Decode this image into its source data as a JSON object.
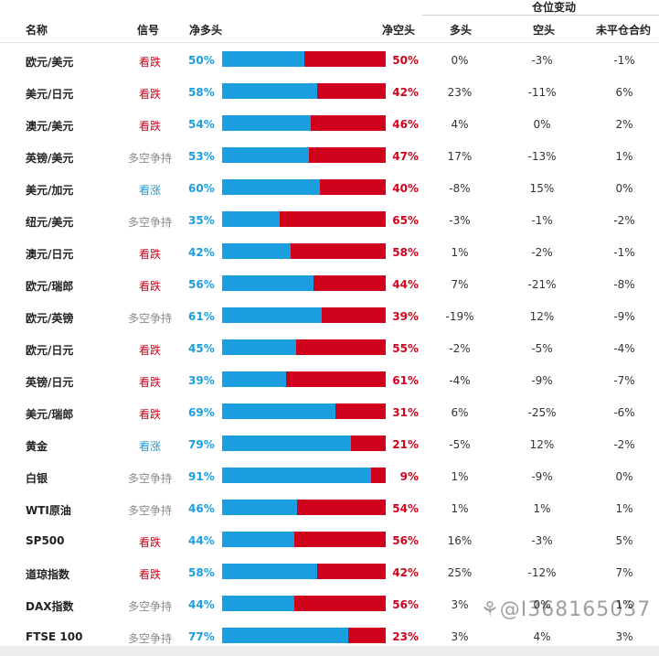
{
  "group_header": "仓位变动",
  "headers": {
    "name": "名称",
    "signal": "信号",
    "net_long": "净多头",
    "net_short": "净空头",
    "long": "多头",
    "short": "空头",
    "open_interest": "未平仓合约"
  },
  "colors": {
    "long_blue": "#1a9ee0",
    "short_red": "#d0021b",
    "neutral_gray": "#8a8a8a"
  },
  "rows": [
    {
      "name": "欧元/美元",
      "signal": "看跌",
      "signal_type": "down",
      "net_long": "50%",
      "net_long_value": 50,
      "net_short": "50%",
      "long": "0%",
      "short": "-3%",
      "oi": "-1%"
    },
    {
      "name": "美元/日元",
      "signal": "看跌",
      "signal_type": "down",
      "net_long": "58%",
      "net_long_value": 58,
      "net_short": "42%",
      "long": "23%",
      "short": "-11%",
      "oi": "6%"
    },
    {
      "name": "澳元/美元",
      "signal": "看跌",
      "signal_type": "down",
      "net_long": "54%",
      "net_long_value": 54,
      "net_short": "46%",
      "long": "4%",
      "short": "0%",
      "oi": "2%"
    },
    {
      "name": "英镑/美元",
      "signal": "多空争持",
      "signal_type": "neutral",
      "net_long": "53%",
      "net_long_value": 53,
      "net_short": "47%",
      "long": "17%",
      "short": "-13%",
      "oi": "1%"
    },
    {
      "name": "美元/加元",
      "signal": "看涨",
      "signal_type": "up",
      "net_long": "60%",
      "net_long_value": 60,
      "net_short": "40%",
      "long": "-8%",
      "short": "15%",
      "oi": "0%"
    },
    {
      "name": "纽元/美元",
      "signal": "多空争持",
      "signal_type": "neutral",
      "net_long": "35%",
      "net_long_value": 35,
      "net_short": "65%",
      "long": "-3%",
      "short": "-1%",
      "oi": "-2%"
    },
    {
      "name": "澳元/日元",
      "signal": "看跌",
      "signal_type": "down",
      "net_long": "42%",
      "net_long_value": 42,
      "net_short": "58%",
      "long": "1%",
      "short": "-2%",
      "oi": "-1%"
    },
    {
      "name": "欧元/瑞郎",
      "signal": "看跌",
      "signal_type": "down",
      "net_long": "56%",
      "net_long_value": 56,
      "net_short": "44%",
      "long": "7%",
      "short": "-21%",
      "oi": "-8%"
    },
    {
      "name": "欧元/英镑",
      "signal": "多空争持",
      "signal_type": "neutral",
      "net_long": "61%",
      "net_long_value": 61,
      "net_short": "39%",
      "long": "-19%",
      "short": "12%",
      "oi": "-9%"
    },
    {
      "name": "欧元/日元",
      "signal": "看跌",
      "signal_type": "down",
      "net_long": "45%",
      "net_long_value": 45,
      "net_short": "55%",
      "long": "-2%",
      "short": "-5%",
      "oi": "-4%"
    },
    {
      "name": "英镑/日元",
      "signal": "看跌",
      "signal_type": "down",
      "net_long": "39%",
      "net_long_value": 39,
      "net_short": "61%",
      "long": "-4%",
      "short": "-9%",
      "oi": "-7%"
    },
    {
      "name": "美元/瑞郎",
      "signal": "看跌",
      "signal_type": "down",
      "net_long": "69%",
      "net_long_value": 69,
      "net_short": "31%",
      "long": "6%",
      "short": "-25%",
      "oi": "-6%"
    },
    {
      "name": "黄金",
      "signal": "看涨",
      "signal_type": "up",
      "net_long": "79%",
      "net_long_value": 79,
      "net_short": "21%",
      "long": "-5%",
      "short": "12%",
      "oi": "-2%"
    },
    {
      "name": "白银",
      "signal": "多空争持",
      "signal_type": "neutral",
      "net_long": "91%",
      "net_long_value": 91,
      "net_short": "9%",
      "long": "1%",
      "short": "-9%",
      "oi": "0%"
    },
    {
      "name": "WTI原油",
      "signal": "多空争持",
      "signal_type": "neutral",
      "net_long": "46%",
      "net_long_value": 46,
      "net_short": "54%",
      "long": "1%",
      "short": "1%",
      "oi": "1%"
    },
    {
      "name": "SP500",
      "signal": "看跌",
      "signal_type": "down",
      "net_long": "44%",
      "net_long_value": 44,
      "net_short": "56%",
      "long": "16%",
      "short": "-3%",
      "oi": "5%"
    },
    {
      "name": "道琼指数",
      "signal": "看跌",
      "signal_type": "down",
      "net_long": "58%",
      "net_long_value": 58,
      "net_short": "42%",
      "long": "25%",
      "short": "-12%",
      "oi": "7%"
    },
    {
      "name": "DAX指数",
      "signal": "多空争持",
      "signal_type": "neutral",
      "net_long": "44%",
      "net_long_value": 44,
      "net_short": "56%",
      "long": "3%",
      "short": "0%",
      "oi": "1%"
    },
    {
      "name": "FTSE 100",
      "signal": "多空争持",
      "signal_type": "neutral",
      "net_long": "77%",
      "net_long_value": 77,
      "net_short": "23%",
      "long": "3%",
      "short": "4%",
      "oi": "3%"
    }
  ],
  "watermark": {
    "icon": "weibo-watermark-icon",
    "text": "@I368165037"
  }
}
